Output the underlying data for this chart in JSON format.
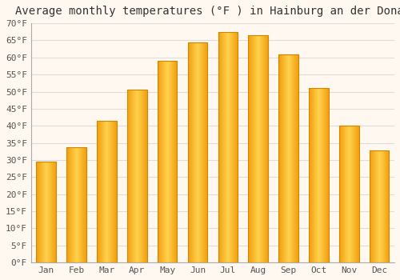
{
  "title": "Average monthly temperatures (°F ) in Hainburg an der Donau",
  "months": [
    "Jan",
    "Feb",
    "Mar",
    "Apr",
    "May",
    "Jun",
    "Jul",
    "Aug",
    "Sep",
    "Oct",
    "Nov",
    "Dec"
  ],
  "values": [
    29.5,
    33.8,
    41.5,
    50.5,
    59.0,
    64.5,
    67.5,
    66.5,
    61.0,
    51.0,
    40.0,
    32.8
  ],
  "bar_color_center": "#FFB733",
  "bar_color_edge": "#F0A000",
  "bar_border_color": "#CC8800",
  "ylim": [
    0,
    70
  ],
  "background_color": "#FFF8F0",
  "plot_bg_color": "#FFF8F0",
  "grid_color": "#DDDDDD",
  "title_fontsize": 10,
  "tick_fontsize": 8,
  "tick_font": "monospace",
  "title_color": "#333333",
  "tick_color": "#555555",
  "bar_width": 0.65,
  "figsize": [
    5.0,
    3.5
  ],
  "dpi": 100
}
